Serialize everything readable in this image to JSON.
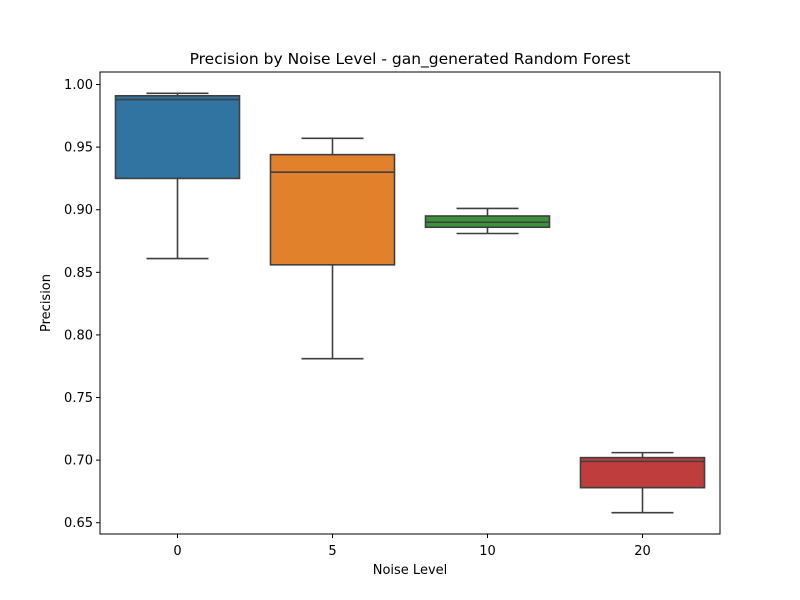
{
  "chart_data": {
    "type": "box",
    "title": "Precision by Noise Level - gan_generated Random Forest",
    "xlabel": "Noise Level",
    "ylabel": "Precision",
    "categories": [
      "0",
      "5",
      "10",
      "20"
    ],
    "ylim": [
      0.641,
      1.01
    ],
    "yticks": [
      0.65,
      0.7,
      0.75,
      0.8,
      0.85,
      0.9,
      0.95,
      1.0
    ],
    "ytick_labels": [
      "0.65",
      "0.70",
      "0.75",
      "0.80",
      "0.85",
      "0.90",
      "0.95",
      "1.00"
    ],
    "grid": false,
    "boxes": [
      {
        "category": "0",
        "whisker_low": 0.861,
        "q1": 0.925,
        "median": 0.988,
        "q3": 0.991,
        "whisker_high": 0.993,
        "color": "#3274a1"
      },
      {
        "category": "5",
        "whisker_low": 0.781,
        "q1": 0.856,
        "median": 0.93,
        "q3": 0.944,
        "whisker_high": 0.957,
        "color": "#e1812c"
      },
      {
        "category": "10",
        "whisker_low": 0.881,
        "q1": 0.886,
        "median": 0.89,
        "q3": 0.895,
        "whisker_high": 0.901,
        "color": "#3a923a"
      },
      {
        "category": "20",
        "whisker_low": 0.658,
        "q1": 0.678,
        "median": 0.699,
        "q3": 0.702,
        "whisker_high": 0.706,
        "color": "#c03d3e"
      }
    ]
  }
}
